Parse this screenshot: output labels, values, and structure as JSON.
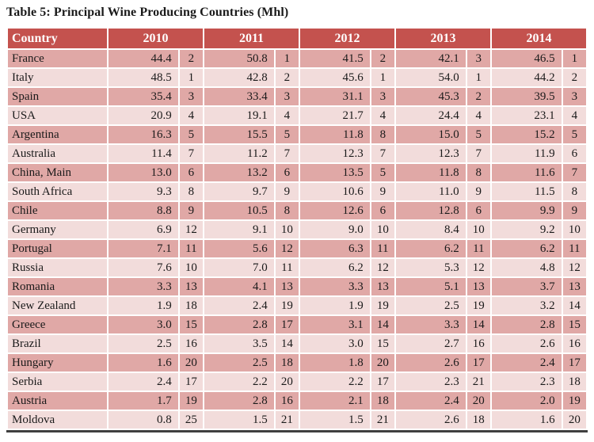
{
  "page": {
    "caption": "Table 5: Principal Wine Producing Countries (Mhl)"
  },
  "colors": {
    "header_bg": "#C4524E",
    "header_text": "#FFFFFF",
    "row_dark": "#E0A8A6",
    "row_light": "#F2DCDB",
    "body_text": "#1A1A1A",
    "bottom_border": "#3F3F3F",
    "page_bg": "#FFFFFF"
  },
  "table": {
    "header": {
      "country": "Country",
      "years": [
        "2010",
        "2011",
        "2012",
        "2013",
        "2014"
      ]
    },
    "rows": [
      {
        "country": "France",
        "data": [
          {
            "value": "44.4",
            "rank": "2"
          },
          {
            "value": "50.8",
            "rank": "1"
          },
          {
            "value": "41.5",
            "rank": "2"
          },
          {
            "value": "42.1",
            "rank": "3"
          },
          {
            "value": "46.5",
            "rank": "1"
          }
        ]
      },
      {
        "country": "Italy",
        "data": [
          {
            "value": "48.5",
            "rank": "1"
          },
          {
            "value": "42.8",
            "rank": "2"
          },
          {
            "value": "45.6",
            "rank": "1"
          },
          {
            "value": "54.0",
            "rank": "1"
          },
          {
            "value": "44.2",
            "rank": "2"
          }
        ]
      },
      {
        "country": "Spain",
        "data": [
          {
            "value": "35.4",
            "rank": "3"
          },
          {
            "value": "33.4",
            "rank": "3"
          },
          {
            "value": "31.1",
            "rank": "3"
          },
          {
            "value": "45.3",
            "rank": "2"
          },
          {
            "value": "39.5",
            "rank": "3"
          }
        ]
      },
      {
        "country": "USA",
        "data": [
          {
            "value": "20.9",
            "rank": "4"
          },
          {
            "value": "19.1",
            "rank": "4"
          },
          {
            "value": "21.7",
            "rank": "4"
          },
          {
            "value": "24.4",
            "rank": "4"
          },
          {
            "value": "23.1",
            "rank": "4"
          }
        ]
      },
      {
        "country": "Argentina",
        "data": [
          {
            "value": "16.3",
            "rank": "5"
          },
          {
            "value": "15.5",
            "rank": "5"
          },
          {
            "value": "11.8",
            "rank": "8"
          },
          {
            "value": "15.0",
            "rank": "5"
          },
          {
            "value": "15.2",
            "rank": "5"
          }
        ]
      },
      {
        "country": "Australia",
        "data": [
          {
            "value": "11.4",
            "rank": "7"
          },
          {
            "value": "11.2",
            "rank": "7"
          },
          {
            "value": "12.3",
            "rank": "7"
          },
          {
            "value": "12.3",
            "rank": "7"
          },
          {
            "value": "11.9",
            "rank": "6"
          }
        ]
      },
      {
        "country": "China, Main",
        "data": [
          {
            "value": "13.0",
            "rank": "6"
          },
          {
            "value": "13.2",
            "rank": "6"
          },
          {
            "value": "13.5",
            "rank": "5"
          },
          {
            "value": "11.8",
            "rank": "8"
          },
          {
            "value": "11.6",
            "rank": "7"
          }
        ]
      },
      {
        "country": "South Africa",
        "data": [
          {
            "value": "9.3",
            "rank": "8"
          },
          {
            "value": "9.7",
            "rank": "9"
          },
          {
            "value": "10.6",
            "rank": "9"
          },
          {
            "value": "11.0",
            "rank": "9"
          },
          {
            "value": "11.5",
            "rank": "8"
          }
        ]
      },
      {
        "country": "Chile",
        "data": [
          {
            "value": "8.8",
            "rank": "9"
          },
          {
            "value": "10.5",
            "rank": "8"
          },
          {
            "value": "12.6",
            "rank": "6"
          },
          {
            "value": "12.8",
            "rank": "6"
          },
          {
            "value": "9.9",
            "rank": "9"
          }
        ]
      },
      {
        "country": "Germany",
        "data": [
          {
            "value": "6.9",
            "rank": "12"
          },
          {
            "value": "9.1",
            "rank": "10"
          },
          {
            "value": "9.0",
            "rank": "10"
          },
          {
            "value": "8.4",
            "rank": "10"
          },
          {
            "value": "9.2",
            "rank": "10"
          }
        ]
      },
      {
        "country": "Portugal",
        "data": [
          {
            "value": "7.1",
            "rank": "11"
          },
          {
            "value": "5.6",
            "rank": "12"
          },
          {
            "value": "6.3",
            "rank": "11"
          },
          {
            "value": "6.2",
            "rank": "11"
          },
          {
            "value": "6.2",
            "rank": "11"
          }
        ]
      },
      {
        "country": "Russia",
        "data": [
          {
            "value": "7.6",
            "rank": "10"
          },
          {
            "value": "7.0",
            "rank": "11"
          },
          {
            "value": "6.2",
            "rank": "12"
          },
          {
            "value": "5.3",
            "rank": "12"
          },
          {
            "value": "4.8",
            "rank": "12"
          }
        ]
      },
      {
        "country": "Romania",
        "data": [
          {
            "value": "3.3",
            "rank": "13"
          },
          {
            "value": "4.1",
            "rank": "13"
          },
          {
            "value": "3.3",
            "rank": "13"
          },
          {
            "value": "5.1",
            "rank": "13"
          },
          {
            "value": "3.7",
            "rank": "13"
          }
        ]
      },
      {
        "country": "New Zealand",
        "data": [
          {
            "value": "1.9",
            "rank": "18"
          },
          {
            "value": "2.4",
            "rank": "19"
          },
          {
            "value": "1.9",
            "rank": "19"
          },
          {
            "value": "2.5",
            "rank": "19"
          },
          {
            "value": "3.2",
            "rank": "14"
          }
        ]
      },
      {
        "country": "Greece",
        "data": [
          {
            "value": "3.0",
            "rank": "15"
          },
          {
            "value": "2.8",
            "rank": "17"
          },
          {
            "value": "3.1",
            "rank": "14"
          },
          {
            "value": "3.3",
            "rank": "14"
          },
          {
            "value": "2.8",
            "rank": "15"
          }
        ]
      },
      {
        "country": "Brazil",
        "data": [
          {
            "value": "2.5",
            "rank": "16"
          },
          {
            "value": "3.5",
            "rank": "14"
          },
          {
            "value": "3.0",
            "rank": "15"
          },
          {
            "value": "2.7",
            "rank": "16"
          },
          {
            "value": "2.6",
            "rank": "16"
          }
        ]
      },
      {
        "country": "Hungary",
        "data": [
          {
            "value": "1.6",
            "rank": "20"
          },
          {
            "value": "2.5",
            "rank": "18"
          },
          {
            "value": "1.8",
            "rank": "20"
          },
          {
            "value": "2.6",
            "rank": "17"
          },
          {
            "value": "2.4",
            "rank": "17"
          }
        ]
      },
      {
        "country": "Serbia",
        "data": [
          {
            "value": "2.4",
            "rank": "17"
          },
          {
            "value": "2.2",
            "rank": "20"
          },
          {
            "value": "2.2",
            "rank": "17"
          },
          {
            "value": "2.3",
            "rank": "21"
          },
          {
            "value": "2.3",
            "rank": "18"
          }
        ]
      },
      {
        "country": "Austria",
        "data": [
          {
            "value": "1.7",
            "rank": "19"
          },
          {
            "value": "2.8",
            "rank": "16"
          },
          {
            "value": "2.1",
            "rank": "18"
          },
          {
            "value": "2.4",
            "rank": "20"
          },
          {
            "value": "2.0",
            "rank": "19"
          }
        ]
      },
      {
        "country": "Moldova",
        "data": [
          {
            "value": "0.8",
            "rank": "25"
          },
          {
            "value": "1.5",
            "rank": "21"
          },
          {
            "value": "1.5",
            "rank": "21"
          },
          {
            "value": "2.6",
            "rank": "18"
          },
          {
            "value": "1.6",
            "rank": "20"
          }
        ]
      }
    ]
  }
}
